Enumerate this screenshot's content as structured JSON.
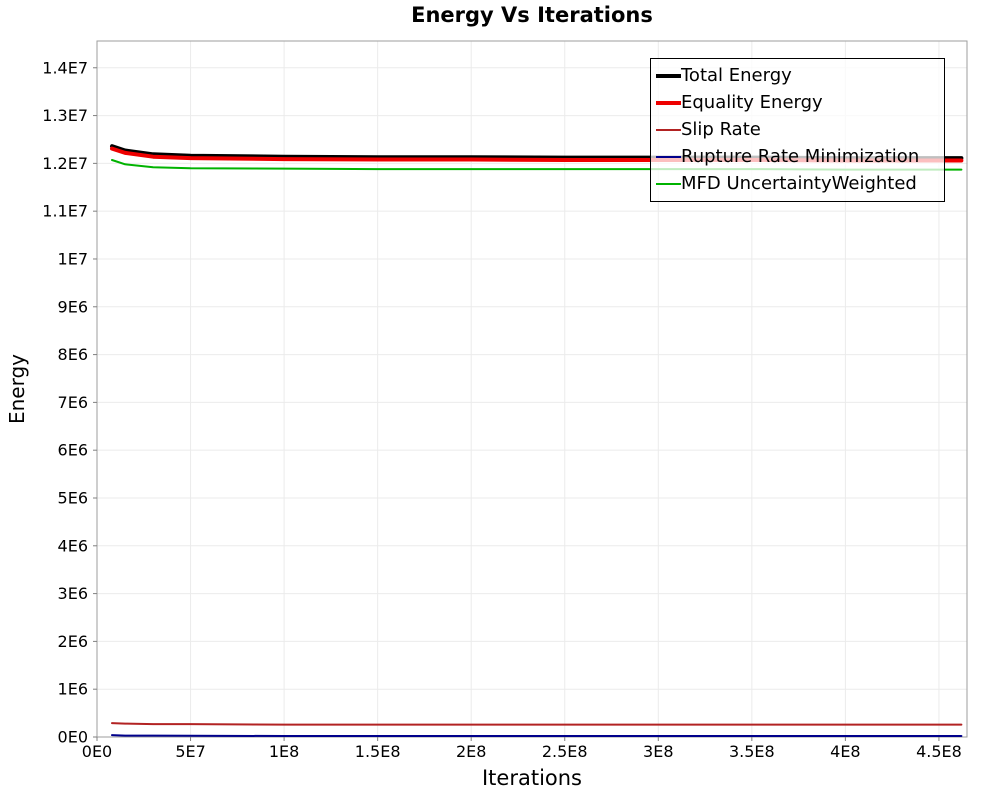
{
  "title": "Energy Vs Iterations",
  "style": {
    "background": "#ffffff",
    "grid_color": "#ebebeb",
    "plot_border_color": "#9e9e9e",
    "tick_color": "#808080",
    "tick_label_color": "#000000",
    "legend_border_color": "#000000",
    "legend_background": "rgba(255,255,255,0.75)"
  },
  "chart_data": {
    "type": "line",
    "title": "Energy Vs Iterations",
    "xlabel": "Iterations",
    "ylabel": "Energy",
    "xlim": [
      0,
      465000000
    ],
    "ylim": [
      0,
      14560000
    ],
    "grid": true,
    "legend_position": "top-right-inside",
    "x_ticks": [
      {
        "v": 0,
        "label": "0E0"
      },
      {
        "v": 50000000,
        "label": "5E7"
      },
      {
        "v": 100000000,
        "label": "1E8"
      },
      {
        "v": 150000000,
        "label": "1.5E8"
      },
      {
        "v": 200000000,
        "label": "2E8"
      },
      {
        "v": 250000000,
        "label": "2.5E8"
      },
      {
        "v": 300000000,
        "label": "3E8"
      },
      {
        "v": 350000000,
        "label": "3.5E8"
      },
      {
        "v": 400000000,
        "label": "4E8"
      },
      {
        "v": 450000000,
        "label": "4.5E8"
      }
    ],
    "y_ticks": [
      {
        "v": 0,
        "label": "0E0"
      },
      {
        "v": 1000000,
        "label": "1E6"
      },
      {
        "v": 2000000,
        "label": "2E6"
      },
      {
        "v": 3000000,
        "label": "3E6"
      },
      {
        "v": 4000000,
        "label": "4E6"
      },
      {
        "v": 5000000,
        "label": "5E6"
      },
      {
        "v": 6000000,
        "label": "6E6"
      },
      {
        "v": 7000000,
        "label": "7E6"
      },
      {
        "v": 8000000,
        "label": "8E6"
      },
      {
        "v": 9000000,
        "label": "9E6"
      },
      {
        "v": 10000000,
        "label": "1E7"
      },
      {
        "v": 11000000,
        "label": "1.1E7"
      },
      {
        "v": 12000000,
        "label": "1.2E7"
      },
      {
        "v": 13000000,
        "label": "1.3E7"
      },
      {
        "v": 14000000,
        "label": "1.4E7"
      }
    ],
    "x_shared": [
      8000000,
      15000000,
      30000000,
      50000000,
      100000000,
      150000000,
      200000000,
      250000000,
      300000000,
      350000000,
      400000000,
      450000000,
      462000000
    ],
    "series": [
      {
        "name": "Total Energy",
        "color": "#000000",
        "stroke_width": 4,
        "y": [
          12360000,
          12270000,
          12190000,
          12160000,
          12140000,
          12130000,
          12130000,
          12120000,
          12120000,
          12120000,
          12110000,
          12110000,
          12110000
        ]
      },
      {
        "name": "Equality Energy",
        "color": "#ee0000",
        "stroke_width": 4,
        "y": [
          12310000,
          12220000,
          12140000,
          12110000,
          12090000,
          12080000,
          12080000,
          12070000,
          12070000,
          12070000,
          12060000,
          12060000,
          12060000
        ]
      },
      {
        "name": "Slip Rate",
        "color": "#b22222",
        "stroke_width": 2,
        "y": [
          290000,
          280000,
          270000,
          270000,
          260000,
          260000,
          260000,
          260000,
          260000,
          260000,
          260000,
          260000,
          260000
        ]
      },
      {
        "name": "Rupture Rate Minimization",
        "color": "#00008b",
        "stroke_width": 2,
        "y": [
          40000,
          30000,
          30000,
          25000,
          20000,
          20000,
          20000,
          20000,
          20000,
          20000,
          20000,
          20000,
          20000
        ]
      },
      {
        "name": "MFD UncertaintyWeighted",
        "color": "#00b300",
        "stroke_width": 2,
        "y": [
          12070000,
          11980000,
          11920000,
          11900000,
          11890000,
          11880000,
          11880000,
          11880000,
          11880000,
          11880000,
          11870000,
          11870000,
          11870000
        ]
      }
    ]
  }
}
